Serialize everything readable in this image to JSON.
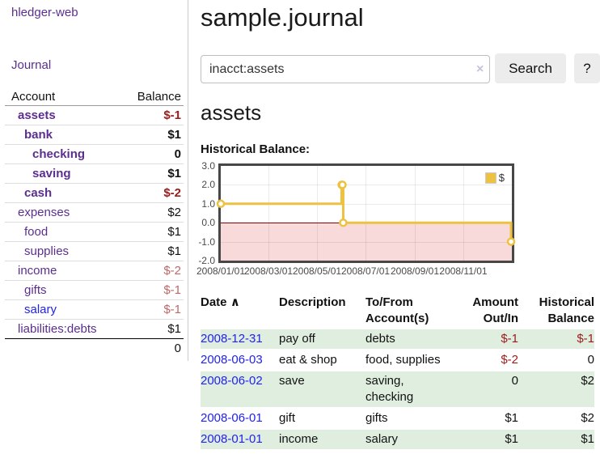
{
  "app": {
    "brand": "hledger-web",
    "journal_link": "Journal"
  },
  "sidebar": {
    "account_header": "Account",
    "balance_header": "Balance",
    "accounts": [
      {
        "name": "assets",
        "level": 1,
        "bold": true,
        "balance": "$-1",
        "neg": "strong"
      },
      {
        "name": "bank",
        "level": 2,
        "bold": true,
        "balance": "$1",
        "neg": "none"
      },
      {
        "name": "checking",
        "level": 3,
        "bold": true,
        "balance": "0",
        "neg": "none"
      },
      {
        "name": "saving",
        "level": 3,
        "bold": true,
        "balance": "$1",
        "neg": "none"
      },
      {
        "name": "cash",
        "level": 2,
        "bold": true,
        "balance": "$-2",
        "neg": "strong"
      },
      {
        "name": "expenses",
        "level": 1,
        "bold": false,
        "balance": "$2",
        "neg": "none"
      },
      {
        "name": "food",
        "level": 2,
        "bold": false,
        "balance": "$1",
        "neg": "none"
      },
      {
        "name": "supplies",
        "level": 2,
        "bold": false,
        "balance": "$1",
        "neg": "none"
      },
      {
        "name": "income",
        "level": 1,
        "bold": false,
        "balance": "$-2",
        "neg": "soft"
      },
      {
        "name": "gifts",
        "level": 2,
        "bold": false,
        "balance": "$-1",
        "neg": "soft"
      },
      {
        "name": "salary",
        "level": 2,
        "bold": false,
        "balance": "$-1",
        "neg": "soft",
        "link_color": "blue"
      },
      {
        "name": "liabilities:debts",
        "level": 1,
        "bold": false,
        "balance": "$1",
        "neg": "none",
        "last": true
      }
    ],
    "total": "0"
  },
  "main": {
    "title": "sample.journal",
    "search": {
      "value": "inacct:assets",
      "clear_icon": "×",
      "search_button": "Search",
      "help_button": "?"
    },
    "account_heading": "assets",
    "chart_title": "Historical Balance:"
  },
  "chart_data": {
    "type": "line",
    "step": true,
    "title": "Historical Balance",
    "legend_label": "$",
    "legend_position": "top-right",
    "series": [
      {
        "name": "$",
        "color": "#edc240",
        "points": [
          [
            "2008-01-01",
            1
          ],
          [
            "2008-06-01",
            2
          ],
          [
            "2008-06-02",
            2
          ],
          [
            "2008-06-03",
            0
          ],
          [
            "2008-12-31",
            -1
          ]
        ]
      }
    ],
    "x_range": [
      "2008-01-01",
      "2009-01-01"
    ],
    "x_tick_labels": [
      "2008/01/01",
      "2008/03/01",
      "2008/05/01",
      "2008/07/01",
      "2008/09/01",
      "2008/11/01"
    ],
    "y_ticks": [
      "3.0",
      "2.0",
      "1.0",
      "0.0",
      "-1.0",
      "-2.0"
    ],
    "ylim": [
      -2,
      3
    ],
    "grid": true,
    "zero_line_color": "#8b0000",
    "negative_region_color": "#f9dada"
  },
  "register": {
    "headers": {
      "date": "Date",
      "sort_icon": "∧",
      "description": "Description",
      "tofrom": "To/From Account(s)",
      "amount": "Amount Out/In",
      "balance": "Historical Balance"
    },
    "rows": [
      {
        "date": "2008-12-31",
        "description": "pay off",
        "accounts": "debts",
        "amount": "$-1",
        "amount_neg": true,
        "balance": "$-1",
        "balance_neg": true,
        "striped": true
      },
      {
        "date": "2008-06-03",
        "description": "eat & shop",
        "accounts": "food, supplies",
        "amount": "$-2",
        "amount_neg": true,
        "balance": "0",
        "balance_neg": false,
        "striped": false
      },
      {
        "date": "2008-06-02",
        "description": "save",
        "accounts": "saving, checking",
        "amount": "0",
        "amount_neg": false,
        "balance": "$2",
        "balance_neg": false,
        "striped": true
      },
      {
        "date": "2008-06-01",
        "description": "gift",
        "accounts": "gifts",
        "amount": "$1",
        "amount_neg": false,
        "balance": "$2",
        "balance_neg": false,
        "striped": false
      },
      {
        "date": "2008-01-01",
        "description": "income",
        "accounts": "salary",
        "amount": "$1",
        "amount_neg": false,
        "balance": "$1",
        "balance_neg": false,
        "striped": true
      }
    ]
  }
}
